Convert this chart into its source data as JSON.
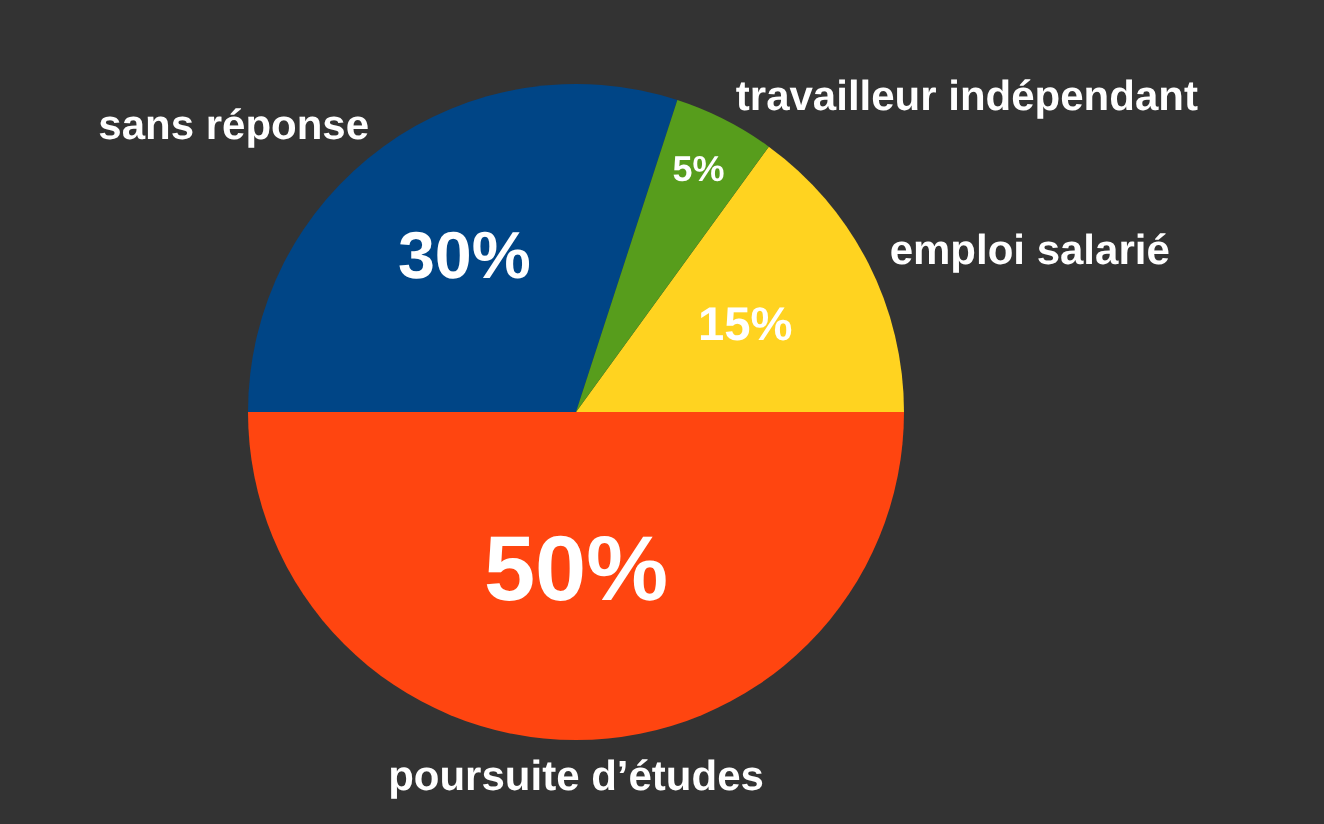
{
  "chart_data": {
    "type": "pie",
    "categories": [
      "emploi salarié",
      "poursuite d’études",
      "sans réponse",
      "travailleur indépendant"
    ],
    "values": [
      15,
      50,
      30,
      5
    ],
    "colors": [
      "#ffd320",
      "#ff4510",
      "#004586",
      "#579d1c"
    ],
    "value_labels": [
      "15%",
      "50%",
      "30%",
      "5%"
    ]
  }
}
